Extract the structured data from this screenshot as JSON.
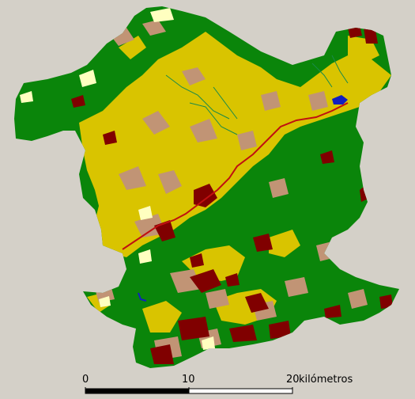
{
  "map": {
    "colors": {
      "background": "#d4d0c8",
      "forest": "#0a850a",
      "agriculture": "#d9c400",
      "shrub": "#c19475",
      "urban": "#800000",
      "pasture": "#ffffc0",
      "water": "#1020c0",
      "river": "#c01010",
      "streams": "#1a8a4a"
    }
  },
  "scale_bar": {
    "ticks": [
      "0",
      "10",
      "20"
    ],
    "unit": "kilómetros"
  }
}
